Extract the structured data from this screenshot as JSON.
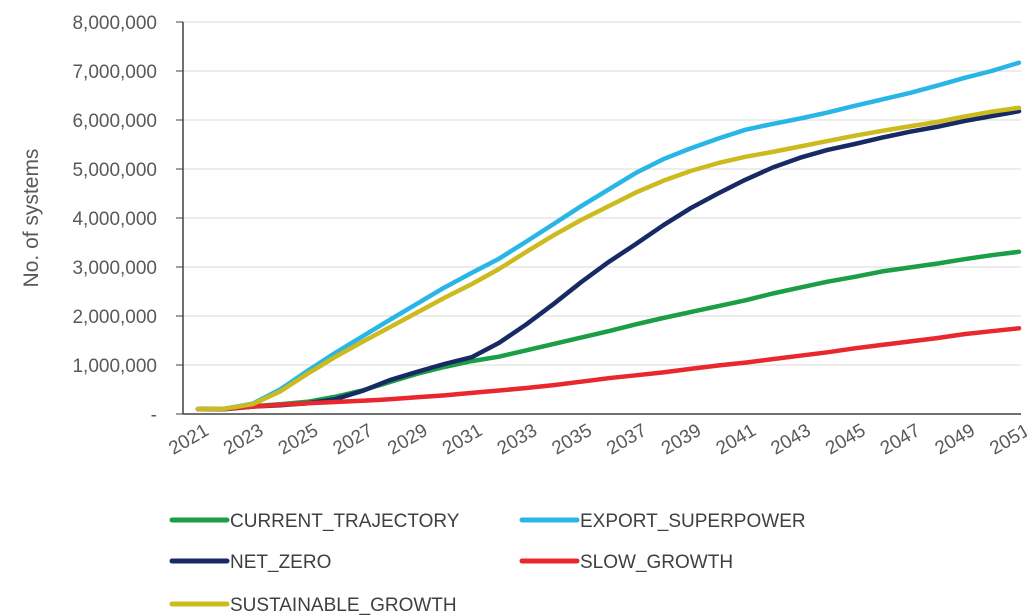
{
  "chart_data": {
    "type": "line",
    "title": "",
    "xlabel": "",
    "ylabel": "No. of systems",
    "ylim": [
      0,
      8000000
    ],
    "yticks": [
      0,
      1000000,
      2000000,
      3000000,
      4000000,
      5000000,
      6000000,
      7000000,
      8000000
    ],
    "ytick_labels": [
      "-",
      "1,000,000",
      "2,000,000",
      "3,000,000",
      "4,000,000",
      "5,000,000",
      "6,000,000",
      "7,000,000",
      "8,000,000"
    ],
    "x": [
      2021,
      2022,
      2023,
      2024,
      2025,
      2026,
      2027,
      2028,
      2029,
      2030,
      2031,
      2032,
      2033,
      2034,
      2035,
      2036,
      2037,
      2038,
      2039,
      2040,
      2041,
      2042,
      2043,
      2044,
      2045,
      2046,
      2047,
      2048,
      2049,
      2050,
      2051
    ],
    "xtick_labels": [
      "2021",
      "2023",
      "2025",
      "2027",
      "2029",
      "2031",
      "2033",
      "2035",
      "2037",
      "2039",
      "2041",
      "2043",
      "2045",
      "2047",
      "2049",
      "2051"
    ],
    "grid": "horizontal",
    "legend": "bottom",
    "series": [
      {
        "name": "CURRENT_TRAJECTORY",
        "color": "#1a9e46",
        "values": [
          100000,
          110000,
          160000,
          200000,
          250000,
          350000,
          480000,
          650000,
          820000,
          960000,
          1080000,
          1170000,
          1300000,
          1430000,
          1560000,
          1690000,
          1830000,
          1960000,
          2080000,
          2200000,
          2320000,
          2460000,
          2580000,
          2700000,
          2800000,
          2910000,
          2990000,
          3070000,
          3160000,
          3240000,
          3310000
        ]
      },
      {
        "name": "EXPORT_SUPERPOWER",
        "color": "#29b6e6",
        "values": [
          100000,
          110000,
          210000,
          500000,
          880000,
          1240000,
          1580000,
          1920000,
          2250000,
          2580000,
          2880000,
          3170000,
          3520000,
          3880000,
          4240000,
          4580000,
          4920000,
          5200000,
          5420000,
          5620000,
          5800000,
          5920000,
          6030000,
          6150000,
          6290000,
          6420000,
          6550000,
          6700000,
          6860000,
          7000000,
          7170000
        ]
      },
      {
        "name": "NET_ZERO",
        "color": "#172a64",
        "values": [
          100000,
          100000,
          150000,
          180000,
          220000,
          300000,
          470000,
          690000,
          860000,
          1020000,
          1160000,
          1450000,
          1830000,
          2250000,
          2690000,
          3100000,
          3470000,
          3850000,
          4200000,
          4500000,
          4780000,
          5030000,
          5230000,
          5390000,
          5510000,
          5640000,
          5760000,
          5860000,
          5980000,
          6080000,
          6180000
        ]
      },
      {
        "name": "SLOW_GROWTH",
        "color": "#e8282e",
        "values": [
          100000,
          110000,
          150000,
          190000,
          220000,
          245000,
          270000,
          300000,
          340000,
          380000,
          430000,
          480000,
          530000,
          590000,
          660000,
          730000,
          790000,
          850000,
          920000,
          990000,
          1050000,
          1120000,
          1190000,
          1260000,
          1340000,
          1410000,
          1480000,
          1550000,
          1630000,
          1690000,
          1750000
        ]
      },
      {
        "name": "SUSTAINABLE_GROWTH",
        "color": "#ccba1e",
        "values": [
          100000,
          110000,
          200000,
          460000,
          820000,
          1160000,
          1470000,
          1770000,
          2070000,
          2370000,
          2650000,
          2960000,
          3310000,
          3650000,
          3960000,
          4240000,
          4520000,
          4760000,
          4960000,
          5120000,
          5250000,
          5350000,
          5460000,
          5570000,
          5680000,
          5780000,
          5870000,
          5960000,
          6070000,
          6170000,
          6250000
        ]
      }
    ]
  }
}
